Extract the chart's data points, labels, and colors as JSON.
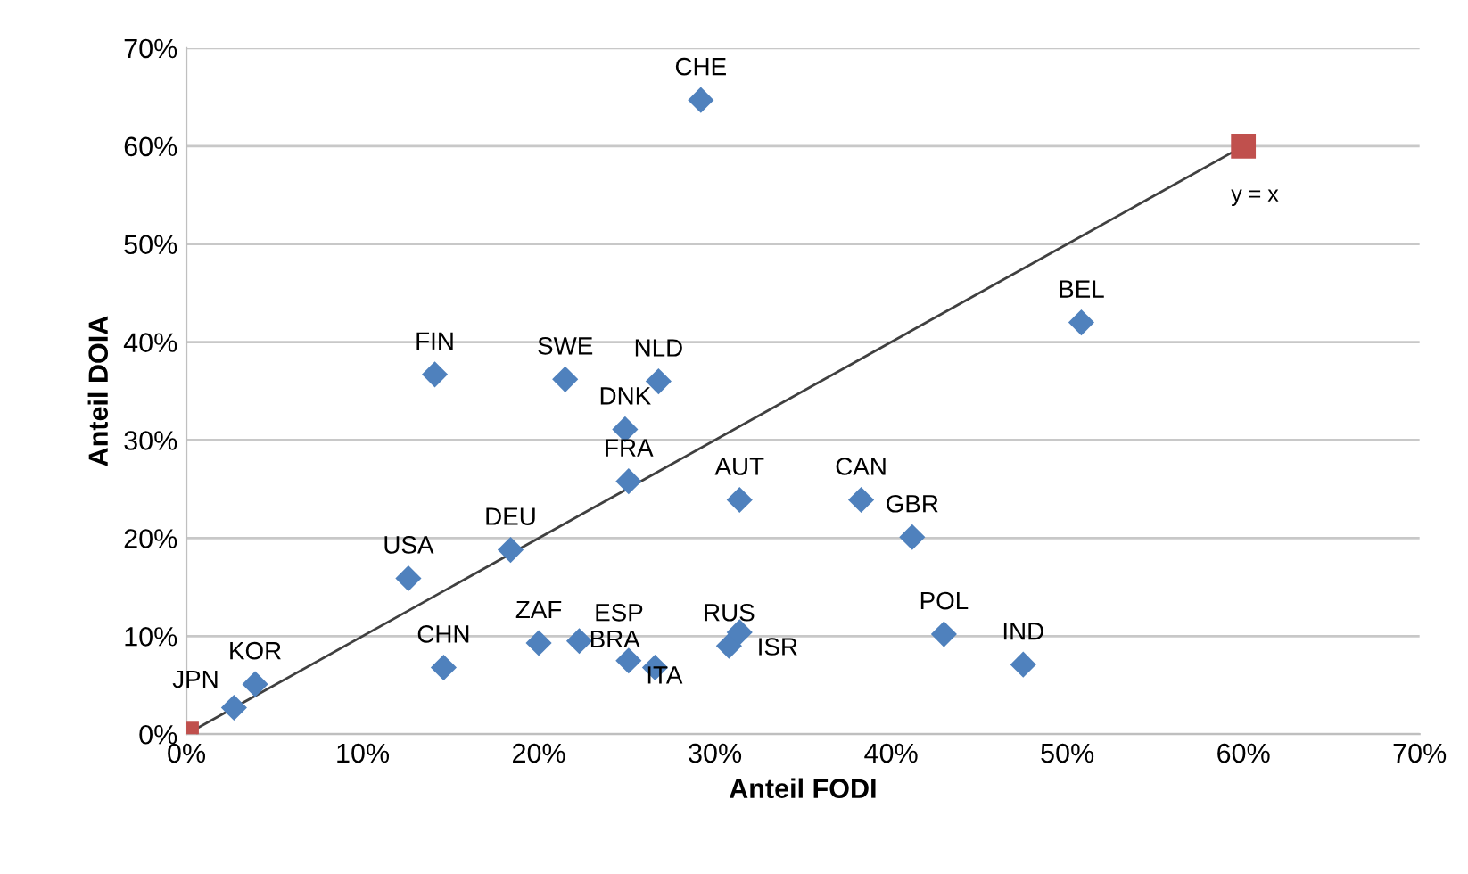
{
  "chart_data": {
    "type": "scatter",
    "xlabel": "Anteil FODI",
    "ylabel": "Anteil DOIA",
    "xlim": [
      0,
      70
    ],
    "ylim": [
      0,
      70
    ],
    "xticks": [
      {
        "value": 0,
        "label": "0%"
      },
      {
        "value": 10,
        "label": "10%"
      },
      {
        "value": 20,
        "label": "20%"
      },
      {
        "value": 30,
        "label": "30%"
      },
      {
        "value": 40,
        "label": "40%"
      },
      {
        "value": 50,
        "label": "50%"
      },
      {
        "value": 60,
        "label": "60%"
      },
      {
        "value": 70,
        "label": "70%"
      }
    ],
    "yticks": [
      {
        "value": 0,
        "label": "0%"
      },
      {
        "value": 10,
        "label": "10%"
      },
      {
        "value": 20,
        "label": "20%"
      },
      {
        "value": 30,
        "label": "30%"
      },
      {
        "value": 40,
        "label": "40%"
      },
      {
        "value": 50,
        "label": "50%"
      },
      {
        "value": 60,
        "label": "60%"
      },
      {
        "value": 70,
        "label": "70%"
      }
    ],
    "grid": "y",
    "series": [
      {
        "color": "#4f81bd",
        "marker": "diamond",
        "x": [
          29.2,
          14.1,
          21.5,
          26.8,
          24.9,
          25.1,
          31.4,
          38.3,
          41.2,
          50.8,
          18.4,
          12.6,
          14.6,
          3.9,
          2.7,
          20.0,
          22.3,
          25.1,
          26.6,
          30.8,
          31.4,
          43.0,
          47.5
        ],
        "values": [
          64.7,
          36.7,
          36.2,
          36.0,
          31.1,
          25.8,
          23.9,
          23.9,
          20.1,
          42.0,
          18.8,
          15.9,
          6.8,
          5.1,
          2.7,
          9.3,
          9.5,
          7.5,
          6.8,
          9.0,
          10.4,
          10.2,
          7.1
        ]
      },
      {
        "type": "line",
        "color": "#c0504d",
        "marker": "square",
        "x": [
          0,
          60
        ],
        "values": [
          0,
          60
        ]
      }
    ],
    "annotations": [
      {
        "text": "CHE",
        "x": 29.2,
        "y": 64.7
      },
      {
        "text": "FIN",
        "x": 14.1,
        "y": 36.7
      },
      {
        "text": "SWE",
        "x": 21.5,
        "y": 36.2
      },
      {
        "text": "NLD",
        "x": 26.8,
        "y": 36.0
      },
      {
        "text": "DNK",
        "x": 24.9,
        "y": 31.1
      },
      {
        "text": "FRA",
        "x": 25.1,
        "y": 25.8
      },
      {
        "text": "AUT",
        "x": 31.4,
        "y": 23.9
      },
      {
        "text": "CAN",
        "x": 38.3,
        "y": 23.9
      },
      {
        "text": "GBR",
        "x": 41.2,
        "y": 20.1
      },
      {
        "text": "BEL",
        "x": 50.8,
        "y": 42.0
      },
      {
        "text": "DEU",
        "x": 18.4,
        "y": 18.8
      },
      {
        "text": "USA",
        "x": 12.6,
        "y": 15.9
      },
      {
        "text": "CHN",
        "x": 14.6,
        "y": 6.8
      },
      {
        "text": "KOR",
        "x": 3.9,
        "y": 5.1
      },
      {
        "text": "JPN",
        "x": 2.7,
        "y": 2.7
      },
      {
        "text": "ZAF",
        "x": 20.0,
        "y": 9.3
      },
      {
        "text": "ESP",
        "x": 22.3,
        "y": 9.5
      },
      {
        "text": "ITA",
        "x": 25.1,
        "y": 7.5
      },
      {
        "text": "BRA",
        "x": 26.6,
        "y": 6.8
      },
      {
        "text": "RUS",
        "x": 30.8,
        "y": 9.0
      },
      {
        "text": "ISR",
        "x": 31.4,
        "y": 10.4
      },
      {
        "text": "POL",
        "x": 43.0,
        "y": 10.2
      },
      {
        "text": "IND",
        "x": 47.5,
        "y": 7.1
      },
      {
        "text": "y = x",
        "x": 60,
        "y": 60
      }
    ]
  }
}
